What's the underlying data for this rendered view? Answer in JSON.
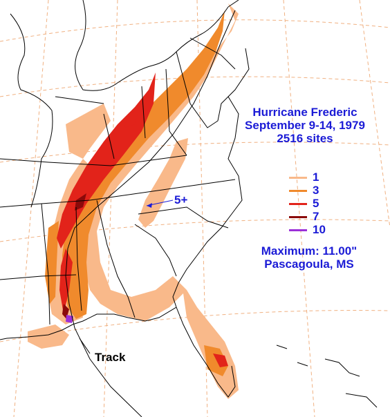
{
  "title": {
    "name": "Hurricane Frederic",
    "dates": "September 9-14, 1979",
    "sites": "2516 sites"
  },
  "legend": {
    "items": [
      {
        "label": "1",
        "color": "#f9b98a"
      },
      {
        "label": "3",
        "color": "#f08a2c"
      },
      {
        "label": "5",
        "color": "#e2231a"
      },
      {
        "label": "7",
        "color": "#8b0a0a"
      },
      {
        "label": "10",
        "color": "#9b30d8"
      }
    ]
  },
  "maximum": {
    "value_line": "Maximum:  11.00\"",
    "location": "Pascagoula, MS"
  },
  "callout": {
    "label": "5+"
  },
  "track": {
    "label": "Track"
  },
  "colors": {
    "text": "#1b1bd6",
    "graticule": "#f0b080",
    "borders": "#000000"
  }
}
